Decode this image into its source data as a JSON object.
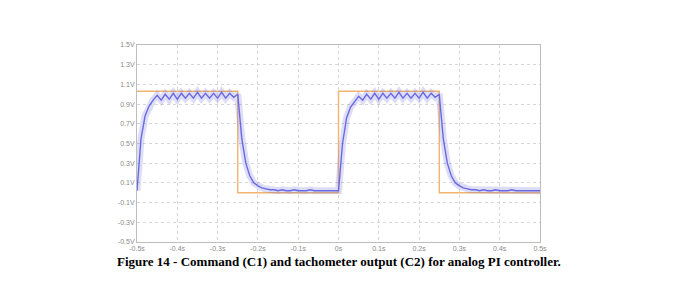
{
  "chart_data": {
    "type": "line",
    "title": "Figure 14 - Command (C1) and tachometer output (C2) for analog PI controller.",
    "grid": true,
    "xlim": [
      -0.5,
      0.5
    ],
    "xticks": [
      {
        "value": -0.5,
        "label": "-0.5s"
      },
      {
        "value": -0.4,
        "label": "-0.4s"
      },
      {
        "value": -0.3,
        "label": "-0.3s"
      },
      {
        "value": -0.2,
        "label": "-0.2s"
      },
      {
        "value": -0.1,
        "label": "-0.1s"
      },
      {
        "value": 0,
        "label": "0s"
      },
      {
        "value": 0.1,
        "label": "0.1s"
      },
      {
        "value": 0.2,
        "label": "0.2s"
      },
      {
        "value": 0.3,
        "label": "0.3s"
      },
      {
        "value": 0.4,
        "label": "0.4s"
      },
      {
        "value": 0.5,
        "label": "0.5s"
      }
    ],
    "ylim": [
      -0.5,
      1.5
    ],
    "yticks": [
      {
        "value": -0.5,
        "label": "-0.5V"
      },
      {
        "value": -0.3,
        "label": "-0.3V"
      },
      {
        "value": -0.1,
        "label": "-0.1V"
      },
      {
        "value": 0.1,
        "label": "0.1V"
      },
      {
        "value": 0.3,
        "label": "0.3V"
      },
      {
        "value": 0.5,
        "label": "0.5V"
      },
      {
        "value": 0.7,
        "label": "0.7V"
      },
      {
        "value": 0.9,
        "label": "0.9V"
      },
      {
        "value": 1.1,
        "label": "1.1V"
      },
      {
        "value": 1.3,
        "label": "1.3V"
      },
      {
        "value": 1.5,
        "label": "1.5V"
      }
    ],
    "series": [
      {
        "name": "C1",
        "color": "#f2b46e",
        "line_style": "solid",
        "x": [
          -0.5,
          -0.25,
          -0.25,
          0,
          0,
          0.25,
          0.25,
          0.5
        ],
        "values": [
          1.03,
          1.03,
          0.0,
          0.0,
          1.03,
          1.03,
          0.0,
          0.0
        ]
      },
      {
        "name": "C2",
        "color": "#6a6ae0",
        "line_style": "solid",
        "x": [
          -0.5,
          -0.49,
          -0.48,
          -0.47,
          -0.46,
          -0.45,
          -0.44,
          -0.43,
          -0.42,
          -0.41,
          -0.4,
          -0.39,
          -0.38,
          -0.37,
          -0.36,
          -0.35,
          -0.34,
          -0.33,
          -0.32,
          -0.31,
          -0.3,
          -0.29,
          -0.28,
          -0.27,
          -0.26,
          -0.25,
          -0.24,
          -0.23,
          -0.22,
          -0.21,
          -0.2,
          -0.19,
          -0.18,
          -0.17,
          -0.16,
          -0.15,
          -0.14,
          -0.13,
          -0.12,
          -0.11,
          -0.1,
          -0.09,
          -0.08,
          -0.07,
          -0.06,
          -0.05,
          -0.04,
          -0.03,
          -0.02,
          -0.01,
          0,
          0.01,
          0.02,
          0.03,
          0.04,
          0.05,
          0.06,
          0.07,
          0.08,
          0.09,
          0.1,
          0.11,
          0.12,
          0.13,
          0.14,
          0.15,
          0.16,
          0.17,
          0.18,
          0.19,
          0.2,
          0.21,
          0.22,
          0.23,
          0.24,
          0.25,
          0.26,
          0.27,
          0.28,
          0.29,
          0.3,
          0.31,
          0.32,
          0.33,
          0.34,
          0.35,
          0.36,
          0.37,
          0.38,
          0.39,
          0.4,
          0.41,
          0.42,
          0.43,
          0.44,
          0.45,
          0.46,
          0.47,
          0.48,
          0.49,
          0.5
        ],
        "values": [
          0.02,
          0.55,
          0.78,
          0.88,
          0.94,
          0.99,
          0.94,
          1.0,
          0.95,
          1.01,
          0.95,
          1.01,
          0.96,
          1.01,
          0.96,
          1.02,
          0.96,
          1.01,
          0.96,
          1.01,
          0.96,
          1.02,
          0.96,
          1.01,
          0.97,
          1.0,
          0.55,
          0.3,
          0.17,
          0.1,
          0.07,
          0.05,
          0.04,
          0.03,
          0.03,
          0.02,
          0.03,
          0.02,
          0.02,
          0.03,
          0.02,
          0.02,
          0.02,
          0.03,
          0.02,
          0.02,
          0.02,
          0.02,
          0.02,
          0.02,
          0.02,
          0.5,
          0.76,
          0.87,
          0.93,
          0.98,
          0.94,
          1.0,
          0.95,
          1.01,
          0.95,
          1.01,
          0.96,
          1.01,
          0.96,
          1.02,
          0.96,
          1.01,
          0.96,
          1.01,
          0.96,
          1.02,
          0.96,
          1.01,
          0.97,
          1.0,
          0.55,
          0.3,
          0.17,
          0.1,
          0.07,
          0.05,
          0.04,
          0.03,
          0.03,
          0.02,
          0.03,
          0.02,
          0.02,
          0.03,
          0.02,
          0.02,
          0.02,
          0.03,
          0.02,
          0.02,
          0.02,
          0.02,
          0.02,
          0.02,
          0.02
        ]
      }
    ]
  }
}
